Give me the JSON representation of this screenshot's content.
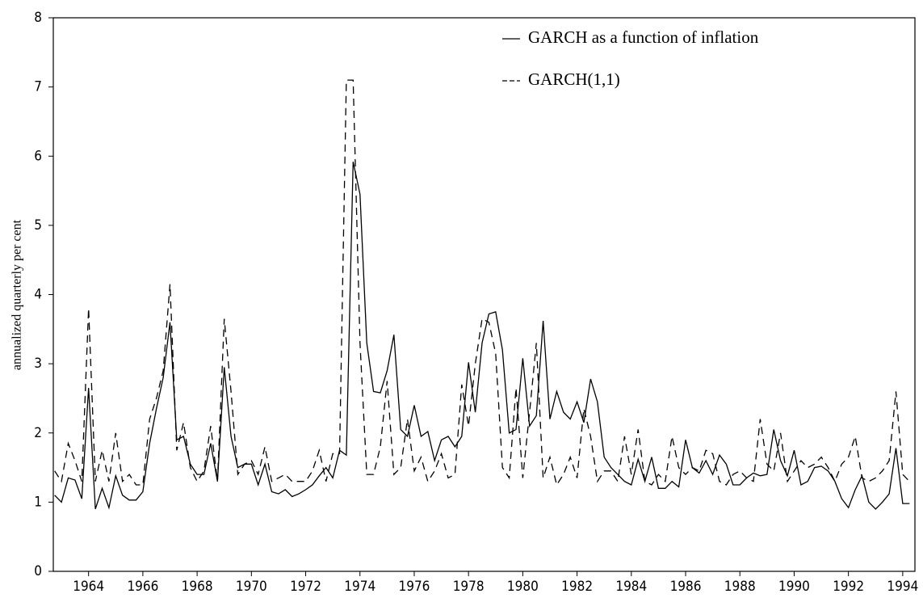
{
  "chart_data": {
    "type": "line",
    "y_label": "annualized quarterly per cent",
    "x": [
      1962.75,
      1963,
      1963.25,
      1963.5,
      1963.75,
      1964,
      1964.25,
      1964.5,
      1964.75,
      1965,
      1965.25,
      1965.5,
      1965.75,
      1966,
      1966.25,
      1966.5,
      1966.75,
      1967,
      1967.25,
      1967.5,
      1967.75,
      1968,
      1968.25,
      1968.5,
      1968.75,
      1969,
      1969.25,
      1969.5,
      1969.75,
      1970,
      1970.25,
      1970.5,
      1970.75,
      1971,
      1971.25,
      1971.5,
      1971.75,
      1972,
      1972.25,
      1972.5,
      1972.75,
      1973,
      1973.25,
      1973.5,
      1973.75,
      1974,
      1974.25,
      1974.5,
      1974.75,
      1975,
      1975.25,
      1975.5,
      1975.75,
      1976,
      1976.25,
      1976.5,
      1976.75,
      1977,
      1977.25,
      1977.5,
      1977.75,
      1978,
      1978.25,
      1978.5,
      1978.75,
      1979,
      1979.25,
      1979.5,
      1979.75,
      1980,
      1980.25,
      1980.5,
      1980.75,
      1981,
      1981.25,
      1981.5,
      1981.75,
      1982,
      1982.25,
      1982.5,
      1982.75,
      1983,
      1983.25,
      1983.5,
      1983.75,
      1984,
      1984.25,
      1984.5,
      1984.75,
      1985,
      1985.25,
      1985.5,
      1985.75,
      1986,
      1986.25,
      1986.5,
      1986.75,
      1987,
      1987.25,
      1987.5,
      1987.75,
      1988,
      1988.25,
      1988.5,
      1988.75,
      1989,
      1989.25,
      1989.5,
      1989.75,
      1990,
      1990.25,
      1990.5,
      1990.75,
      1991,
      1991.25,
      1991.5,
      1991.75,
      1992,
      1992.25,
      1992.5,
      1992.75,
      1993,
      1993.25,
      1993.5,
      1993.75,
      1994,
      1994.25
    ],
    "series": [
      {
        "name": "GARCH as a function of inflation",
        "color": "#000000",
        "dash": "solid",
        "values": [
          1.1,
          1.0,
          1.35,
          1.32,
          1.05,
          2.65,
          0.9,
          1.2,
          0.92,
          1.38,
          1.1,
          1.03,
          1.03,
          1.15,
          1.85,
          2.35,
          2.8,
          3.6,
          1.9,
          1.95,
          1.55,
          1.4,
          1.4,
          1.85,
          1.3,
          2.95,
          1.95,
          1.5,
          1.55,
          1.55,
          1.25,
          1.55,
          1.15,
          1.12,
          1.18,
          1.08,
          1.12,
          1.18,
          1.25,
          1.38,
          1.5,
          1.35,
          1.75,
          1.68,
          5.92,
          5.45,
          3.3,
          2.6,
          2.58,
          2.9,
          3.42,
          2.05,
          1.95,
          2.4,
          1.95,
          2.02,
          1.6,
          1.9,
          1.95,
          1.8,
          1.95,
          3.02,
          2.3,
          3.3,
          3.72,
          3.75,
          3.2,
          2.0,
          2.05,
          3.08,
          2.1,
          2.25,
          3.62,
          2.2,
          2.6,
          2.3,
          2.2,
          2.45,
          2.15,
          2.78,
          2.45,
          1.65,
          1.5,
          1.4,
          1.3,
          1.25,
          1.62,
          1.3,
          1.65,
          1.2,
          1.2,
          1.3,
          1.22,
          1.9,
          1.5,
          1.42,
          1.6,
          1.4,
          1.68,
          1.55,
          1.25,
          1.25,
          1.35,
          1.42,
          1.38,
          1.4,
          2.05,
          1.6,
          1.38,
          1.75,
          1.25,
          1.3,
          1.5,
          1.52,
          1.45,
          1.3,
          1.05,
          0.92,
          1.18,
          1.38,
          1.0,
          0.9,
          1.0,
          1.12,
          1.78,
          0.98,
          0.98
        ]
      },
      {
        "name": "GARCH(1,1)",
        "color": "#000000",
        "dash": "dashed",
        "values": [
          1.45,
          1.3,
          1.85,
          1.6,
          1.3,
          3.8,
          1.3,
          1.75,
          1.3,
          2.0,
          1.3,
          1.4,
          1.25,
          1.25,
          2.2,
          2.5,
          2.9,
          4.15,
          1.75,
          2.15,
          1.5,
          1.3,
          1.45,
          2.1,
          1.3,
          3.65,
          2.6,
          1.4,
          1.55,
          1.6,
          1.4,
          1.8,
          1.3,
          1.35,
          1.4,
          1.3,
          1.3,
          1.3,
          1.45,
          1.75,
          1.3,
          1.7,
          1.7,
          7.1,
          7.1,
          3.3,
          1.4,
          1.4,
          1.8,
          2.75,
          1.4,
          1.5,
          2.2,
          1.45,
          1.65,
          1.3,
          1.45,
          1.7,
          1.35,
          1.4,
          2.7,
          2.1,
          3.0,
          3.65,
          3.6,
          3.15,
          1.5,
          1.35,
          2.65,
          1.35,
          2.3,
          3.3,
          1.35,
          1.65,
          1.25,
          1.4,
          1.65,
          1.35,
          2.35,
          1.95,
          1.3,
          1.45,
          1.45,
          1.3,
          1.95,
          1.4,
          2.05,
          1.3,
          1.25,
          1.4,
          1.3,
          1.95,
          1.5,
          1.4,
          1.5,
          1.45,
          1.75,
          1.7,
          1.3,
          1.25,
          1.4,
          1.45,
          1.35,
          1.3,
          2.2,
          1.55,
          1.45,
          2.0,
          1.3,
          1.45,
          1.6,
          1.5,
          1.55,
          1.65,
          1.5,
          1.3,
          1.55,
          1.65,
          1.95,
          1.35,
          1.3,
          1.35,
          1.45,
          1.6,
          2.6,
          1.4,
          1.3
        ]
      }
    ],
    "xlim": [
      1962.7,
      1994.45
    ],
    "xticks": [
      1964,
      1966,
      1968,
      1970,
      1972,
      1974,
      1976,
      1978,
      1980,
      1982,
      1984,
      1986,
      1988,
      1990,
      1992,
      1994
    ],
    "ylim": [
      0,
      8
    ],
    "yticks": [
      0,
      1,
      2,
      3,
      4,
      5,
      6,
      7,
      8
    ],
    "grid": false,
    "legend": "upper right"
  }
}
